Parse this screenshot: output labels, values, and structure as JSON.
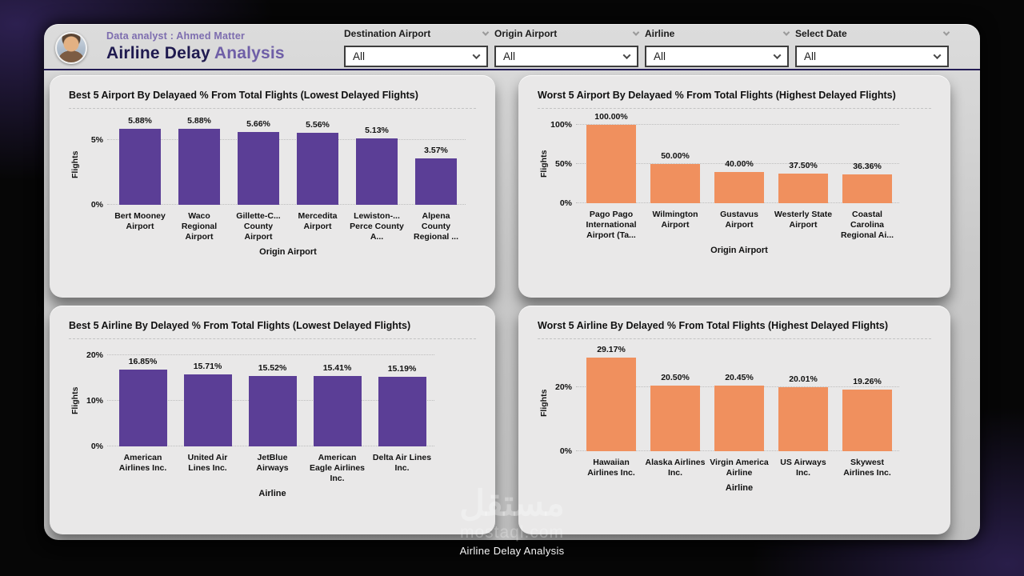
{
  "header": {
    "analyst_label": "Data analyst : Ahmed Matter",
    "title_bold": "Airline Delay",
    "title_light": "Analysis"
  },
  "filters": [
    {
      "label": "Destination Airport",
      "value": "All"
    },
    {
      "label": "Origin Airport",
      "value": "All"
    },
    {
      "label": "Airline",
      "value": "All"
    },
    {
      "label": "Select Date",
      "value": "All"
    }
  ],
  "footer": {
    "page_title": "Airline Delay Analysis"
  },
  "watermark": {
    "line1": "مستقل",
    "line2": "mostaql.com"
  },
  "theme": {
    "bar_purple": "#5b3e96",
    "bar_orange": "#f0905e",
    "title_dark": "#1f1a4f",
    "title_light": "#6f5fa7",
    "analyst_text": "#7d6daf"
  },
  "chart_data": [
    {
      "type": "bar",
      "title": "Best 5 Airport By Delayaed % From Total Flights (Lowest Delayed Flights)",
      "xlabel": "Origin Airport",
      "ylabel": "Flights",
      "bar_color": "#5b3e96",
      "ylim": [
        0,
        6.2
      ],
      "grid": "dotted",
      "legend": "none",
      "yticks": [
        {
          "value": 0,
          "label": "0%"
        },
        {
          "value": 5,
          "label": "5%"
        }
      ],
      "categories": [
        "Bert Mooney Airport",
        "Waco Regional Airport",
        "Gillette-C... County Airport",
        "Mercedita Airport",
        "Lewiston-... Perce County A...",
        "Alpena County Regional ..."
      ],
      "values": [
        5.88,
        5.88,
        5.66,
        5.56,
        5.13,
        3.57
      ],
      "labels": [
        "5.88%",
        "5.88%",
        "5.66%",
        "5.56%",
        "5.13%",
        "3.57%"
      ]
    },
    {
      "type": "bar",
      "title": "Worst 5 Airport By Delayaed % From Total Flights (Highest Delayed Flights)",
      "xlabel": "Origin Airport",
      "ylabel": "Flights",
      "bar_color": "#f0905e",
      "ylim": [
        0,
        100
      ],
      "grid": "dotted",
      "legend": "none",
      "yticks": [
        {
          "value": 0,
          "label": "0%"
        },
        {
          "value": 50,
          "label": "50%"
        },
        {
          "value": 100,
          "label": "100%"
        }
      ],
      "categories": [
        "Pago Pago International Airport (Ta...",
        "Wilmington Airport",
        "Gustavus Airport",
        "Westerly State Airport",
        "Coastal Carolina Regional Ai..."
      ],
      "values": [
        100,
        50,
        40,
        37.5,
        36.36
      ],
      "labels": [
        "100.00%",
        "50.00%",
        "40.00%",
        "37.50%",
        "36.36%"
      ]
    },
    {
      "type": "bar",
      "title": "Best 5 Airline By Delayed % From Total Flights (Lowest Delayed Flights)",
      "xlabel": "Airline",
      "ylabel": "Flights",
      "bar_color": "#5b3e96",
      "ylim": [
        0,
        20
      ],
      "grid": "dotted",
      "legend": "none",
      "yticks": [
        {
          "value": 0,
          "label": "0%"
        },
        {
          "value": 10,
          "label": "10%"
        },
        {
          "value": 20,
          "label": "20%"
        }
      ],
      "categories": [
        "American Airlines Inc.",
        "United Air Lines Inc.",
        "JetBlue Airways",
        "American Eagle Airlines Inc.",
        "Delta Air Lines Inc."
      ],
      "values": [
        16.85,
        15.71,
        15.52,
        15.41,
        15.19
      ],
      "labels": [
        "16.85%",
        "15.71%",
        "15.52%",
        "15.41%",
        "15.19%"
      ]
    },
    {
      "type": "bar",
      "title": "Worst 5 Airline By Delayed % From Total Flights (Highest Delayed Flights)",
      "xlabel": "Airline",
      "ylabel": "Flights",
      "bar_color": "#f0905e",
      "ylim": [
        0,
        30
      ],
      "grid": "dotted",
      "legend": "none",
      "yticks": [
        {
          "value": 0,
          "label": "0%"
        },
        {
          "value": 20,
          "label": "20%"
        }
      ],
      "categories": [
        "Hawaiian Airlines Inc.",
        "Alaska Airlines Inc.",
        "Virgin America Airline",
        "US Airways Inc.",
        "Skywest Airlines Inc."
      ],
      "values": [
        29.17,
        20.5,
        20.45,
        20.01,
        19.26
      ],
      "labels": [
        "29.17%",
        "20.50%",
        "20.45%",
        "20.01%",
        "19.26%"
      ]
    }
  ]
}
